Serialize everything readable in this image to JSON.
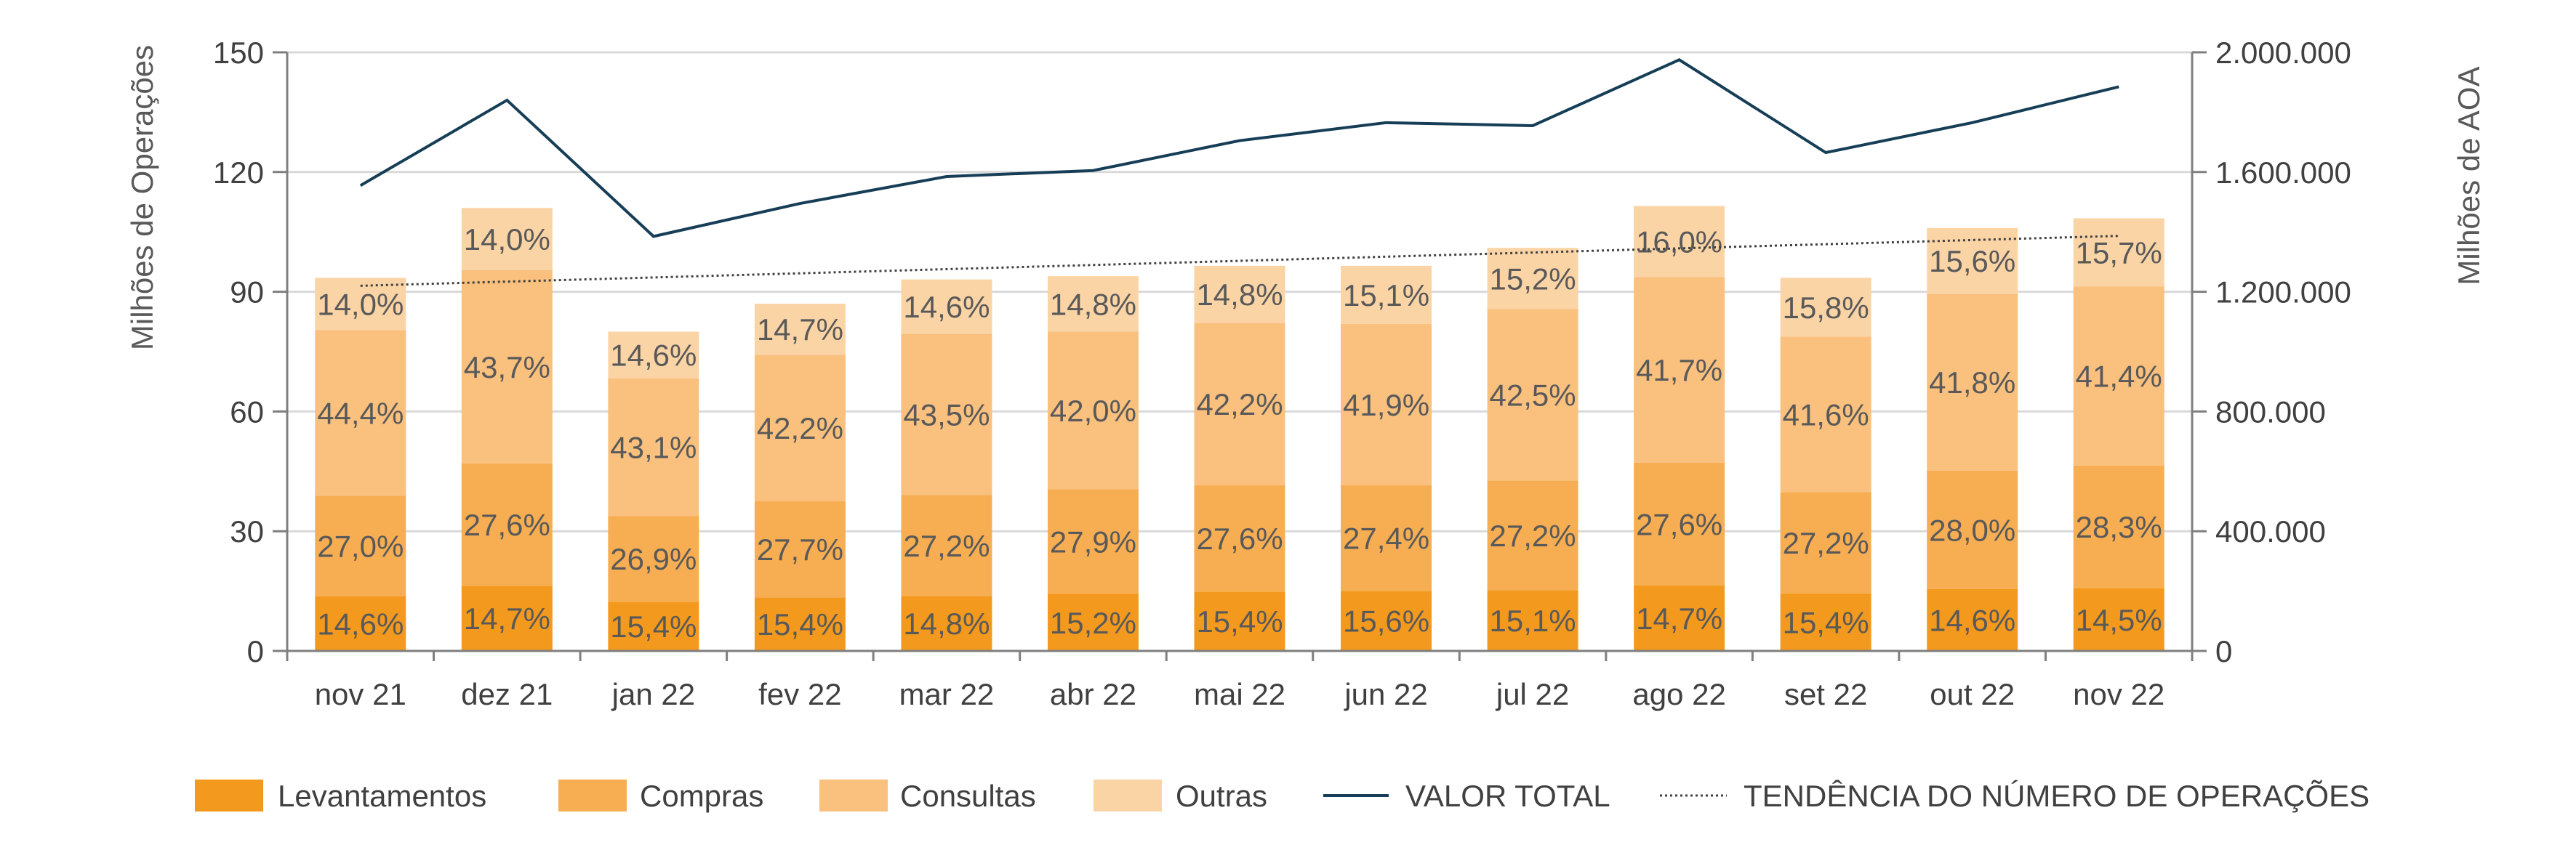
{
  "chart_data": {
    "type": "bar",
    "stacked": true,
    "title": "",
    "categories": [
      "nov 21",
      "dez 21",
      "jan 22",
      "fev 22",
      "mar 22",
      "abr 22",
      "mai 22",
      "jun 22",
      "jul 22",
      "ago 22",
      "set 22",
      "out 22",
      "nov 22"
    ],
    "ylabel_left": "Milhões de Operações",
    "ylabel_right": "Milhões de AOA",
    "ylim_left": [
      0,
      150
    ],
    "ylim_right": [
      0,
      2000000
    ],
    "yticks_left": [
      "0",
      "30",
      "60",
      "90",
      "120",
      "150"
    ],
    "yticks_right": [
      "0",
      "400.000",
      "800.000",
      "1.200.000",
      "1.600.000",
      "2.000.000"
    ],
    "grid": true,
    "legend_position": "bottom",
    "totals": [
      93.5,
      111,
      80,
      87,
      93,
      94,
      96.5,
      96.5,
      101,
      111.5,
      93.5,
      106,
      108.5
    ],
    "series": [
      {
        "name": "Levantamentos",
        "color": "#F39A1E",
        "labels": [
          "14,6%",
          "14,7%",
          "15,4%",
          "15,4%",
          "14,8%",
          "15,2%",
          "15,4%",
          "15,6%",
          "15,1%",
          "14,7%",
          "15,4%",
          "14,6%",
          "14,5%"
        ]
      },
      {
        "name": "Compras",
        "color": "#F7AE52",
        "labels": [
          "27,0%",
          "27,6%",
          "26,9%",
          "27,7%",
          "27,2%",
          "27,9%",
          "27,6%",
          "27,4%",
          "27,2%",
          "27,6%",
          "27,2%",
          "28,0%",
          "28,3%"
        ]
      },
      {
        "name": "Consultas",
        "color": "#F9C07E",
        "labels": [
          "44,4%",
          "43,7%",
          "43,1%",
          "42,2%",
          "43,5%",
          "42,0%",
          "42,2%",
          "41,9%",
          "42,5%",
          "41,7%",
          "41,6%",
          "41,8%",
          "41,4%"
        ]
      },
      {
        "name": "Outras",
        "color": "#FBD4A6",
        "labels": [
          "14,0%",
          "14,0%",
          "14,6%",
          "14,7%",
          "14,6%",
          "14,8%",
          "14,8%",
          "15,1%",
          "15,2%",
          "16,0%",
          "15,8%",
          "15,6%",
          "15,7%"
        ]
      }
    ],
    "line": {
      "name": "VALOR TOTAL",
      "color": "#173E57",
      "axis": "right",
      "values": [
        1555000,
        1840000,
        1385000,
        1495000,
        1585000,
        1605000,
        1705000,
        1765000,
        1755000,
        1975000,
        1665000,
        1765000,
        1885000
      ]
    },
    "trend": {
      "name": "TENDÊNCIA DO NÚMERO DE OPERAÇÕES",
      "color": "#404040",
      "axis": "left",
      "start": 91.5,
      "end": 104
    }
  }
}
